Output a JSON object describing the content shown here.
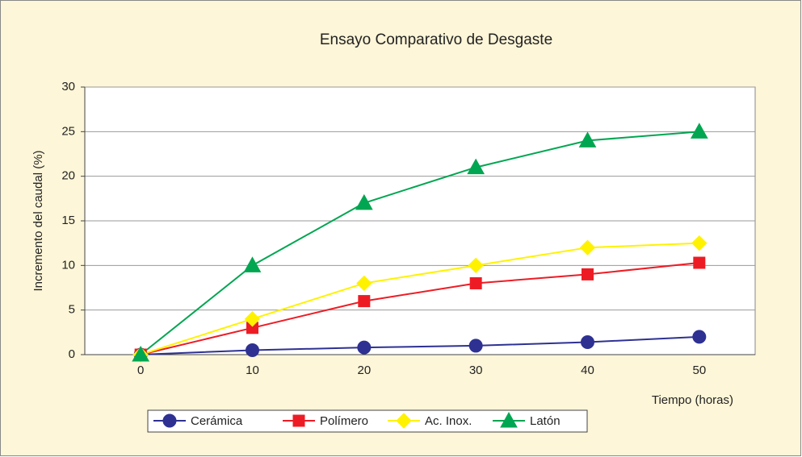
{
  "chart_data": {
    "type": "line",
    "title": "Ensayo Comparativo de Desgaste",
    "x_label": "Tiempo (horas)",
    "y_label": "Incremento del caudal (%)",
    "categories": [
      "0",
      "10",
      "20",
      "30",
      "40",
      "50"
    ],
    "series": [
      {
        "name": "Cerámica",
        "color": "#2e3192",
        "marker": "circle",
        "values": [
          0,
          0.5,
          0.8,
          1.0,
          1.4,
          2.0
        ]
      },
      {
        "name": "Polímero",
        "color": "#ed1c24",
        "marker": "square",
        "values": [
          0,
          3,
          6,
          8,
          9,
          10.3
        ]
      },
      {
        "name": "Ac. Inox.",
        "color": "#fff200",
        "marker": "diamond",
        "values": [
          0,
          4,
          8,
          10,
          12,
          12.5
        ]
      },
      {
        "name": "Latón",
        "color": "#00a651",
        "marker": "triangle",
        "values": [
          0,
          10,
          17,
          21,
          24,
          25
        ]
      }
    ],
    "ylim": [
      0,
      30
    ],
    "yticks": [
      0,
      5,
      10,
      15,
      20,
      25,
      30
    ],
    "grid": true,
    "legend": "bottom"
  }
}
